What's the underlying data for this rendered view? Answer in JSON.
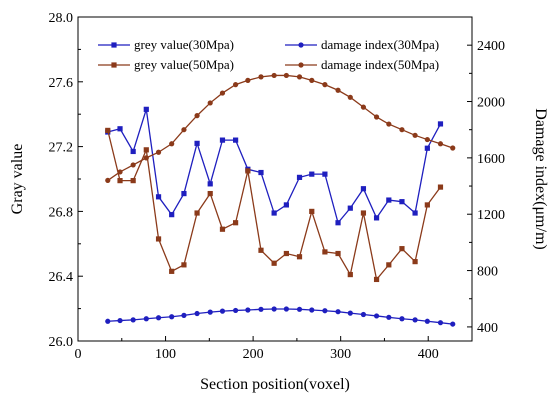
{
  "chart_data": {
    "type": "line",
    "xlabel": "Section position(voxel)",
    "ylabel_left": "Gray value",
    "ylabel_right": "Damage index(μm/m)",
    "xlim": [
      0,
      450
    ],
    "ylim_left": [
      26.0,
      28.0
    ],
    "ylim_right": [
      300,
      2600
    ],
    "xticks": [
      0,
      100,
      200,
      300,
      400
    ],
    "yticks_left": [
      26.0,
      26.4,
      26.8,
      27.2,
      27.6,
      28.0
    ],
    "yticks_right": [
      400,
      800,
      1200,
      1600,
      2000,
      2400
    ],
    "legend_position": "top",
    "series": [
      {
        "name": "grey value(30Mpa)",
        "axis": "left",
        "color": "#1f1fbf",
        "marker": "square",
        "x": [
          34,
          48,
          63,
          78,
          92,
          107,
          121,
          136,
          151,
          165,
          180,
          194,
          209,
          224,
          238,
          253,
          267,
          282,
          297,
          311,
          326,
          341,
          355,
          370,
          385,
          399,
          414,
          428
        ],
        "y": [
          27.29,
          27.31,
          27.17,
          27.43,
          26.89,
          26.78,
          26.91,
          27.22,
          26.97,
          27.24,
          27.24,
          27.06,
          27.04,
          26.79,
          26.84,
          27.01,
          27.03,
          27.03,
          26.73,
          26.82,
          26.94,
          26.76,
          26.87,
          26.86,
          26.79,
          27.19,
          27.34,
          null
        ]
      },
      {
        "name": "grey value(50Mpa)",
        "axis": "left",
        "color": "#8b3a1a",
        "marker": "square",
        "x": [
          34,
          48,
          63,
          78,
          92,
          107,
          121,
          136,
          151,
          165,
          180,
          194,
          209,
          224,
          238,
          253,
          267,
          282,
          297,
          311,
          326,
          341,
          355,
          370,
          385,
          399,
          414,
          428
        ],
        "y": [
          27.3,
          26.99,
          26.99,
          27.18,
          26.63,
          26.43,
          26.47,
          26.79,
          26.91,
          26.69,
          26.73,
          27.05,
          26.56,
          26.48,
          26.54,
          26.52,
          26.8,
          26.55,
          26.54,
          26.41,
          26.79,
          26.38,
          26.47,
          26.57,
          26.49,
          26.84,
          26.95,
          null
        ]
      },
      {
        "name": "damage index(30Mpa)",
        "axis": "right",
        "color": "#1f1fbf",
        "marker": "circle",
        "x": [
          34,
          48,
          63,
          78,
          92,
          107,
          121,
          136,
          151,
          165,
          180,
          194,
          209,
          224,
          238,
          253,
          267,
          282,
          297,
          311,
          326,
          341,
          355,
          370,
          385,
          399,
          414,
          428
        ],
        "y": [
          440,
          445,
          450,
          458,
          465,
          472,
          482,
          495,
          505,
          512,
          517,
          520,
          525,
          527,
          527,
          525,
          520,
          515,
          508,
          498,
          488,
          478,
          468,
          458,
          450,
          440,
          430,
          420
        ]
      },
      {
        "name": "damage index(50Mpa)",
        "axis": "right",
        "color": "#8b3a1a",
        "marker": "circle",
        "x": [
          34,
          48,
          63,
          78,
          92,
          107,
          121,
          136,
          151,
          165,
          180,
          194,
          209,
          224,
          238,
          253,
          267,
          282,
          297,
          311,
          326,
          341,
          355,
          370,
          385,
          399,
          414,
          428
        ],
        "y": [
          1440,
          1500,
          1550,
          1600,
          1640,
          1700,
          1800,
          1900,
          1990,
          2060,
          2120,
          2150,
          2175,
          2185,
          2185,
          2175,
          2150,
          2120,
          2080,
          2030,
          1960,
          1890,
          1840,
          1800,
          1760,
          1730,
          1700,
          1670
        ]
      }
    ]
  }
}
